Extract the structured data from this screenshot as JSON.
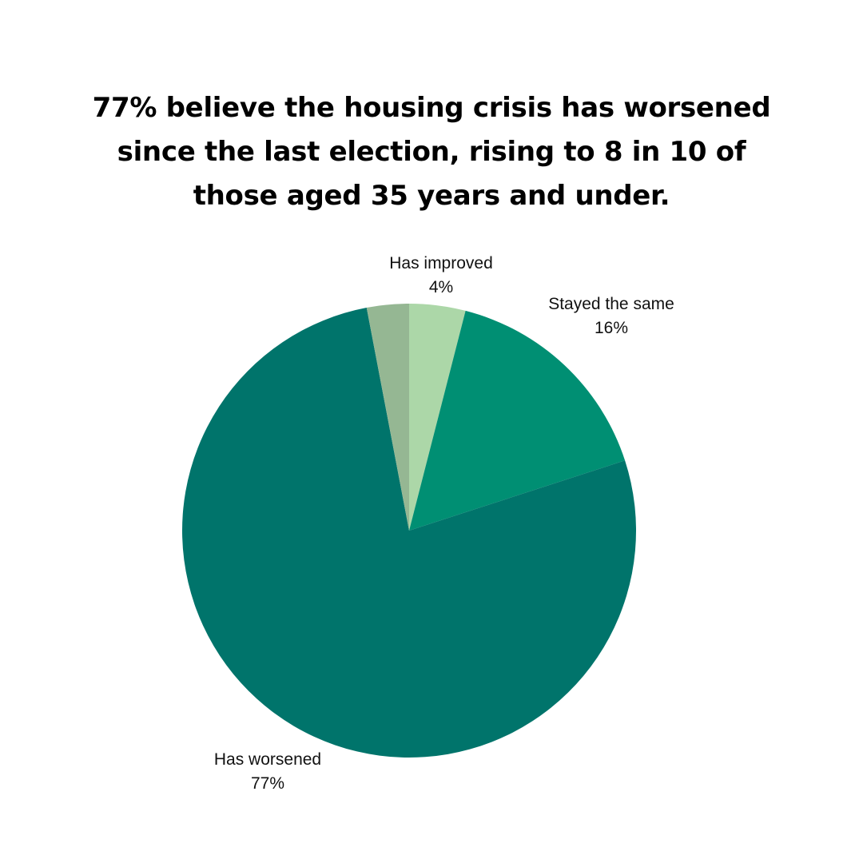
{
  "title_lines": [
    "77% believe the housing crisis has worsened",
    "since the last election, rising to 8 in 10 of",
    "those aged 35 years and under."
  ],
  "chart_data": {
    "type": "pie",
    "title": "77% believe the housing crisis has worsened since the last election, rising to 8 in 10 of those aged 35 years and under.",
    "slices": [
      {
        "label": "Has improved",
        "value": 4,
        "value_label": "4%",
        "color": "#acd7a8"
      },
      {
        "label": "Stayed the same",
        "value": 16,
        "value_label": "16%",
        "color": "#008f73"
      },
      {
        "label": "Has worsened",
        "value": 77,
        "value_label": "77%",
        "color": "#00746b"
      },
      {
        "label": "",
        "value": 3,
        "value_label": "",
        "color": "#95b793"
      }
    ],
    "start_angle_degrees": 0,
    "direction": "clockwise",
    "legend": "none",
    "label_placement": "outside"
  }
}
